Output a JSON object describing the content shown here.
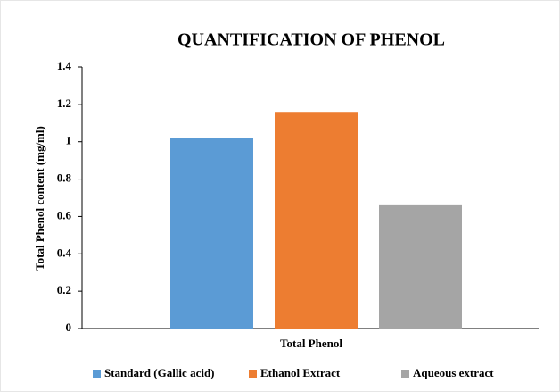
{
  "chart_data": {
    "type": "bar",
    "title": "QUANTIFICATION  OF PHENOL",
    "y_label": "Total Phenol content (mg/ml)",
    "x_label": "Total Phenol",
    "categories": [
      "Total Phenol"
    ],
    "series": [
      {
        "name": "Standard (Gallic acid)",
        "color": "#5b9bd5",
        "values": [
          1.02
        ]
      },
      {
        "name": "Ethanol Extract",
        "color": "#ed7d31",
        "values": [
          1.16
        ]
      },
      {
        "name": "Aqueous extract",
        "color": "#a5a5a5",
        "values": [
          0.66
        ]
      }
    ],
    "ylim": [
      0,
      1.4
    ],
    "yticks": [
      0,
      0.2,
      0.4,
      0.6,
      0.8,
      1,
      1.2,
      1.4
    ],
    "grid": false,
    "legend": "bottom"
  }
}
